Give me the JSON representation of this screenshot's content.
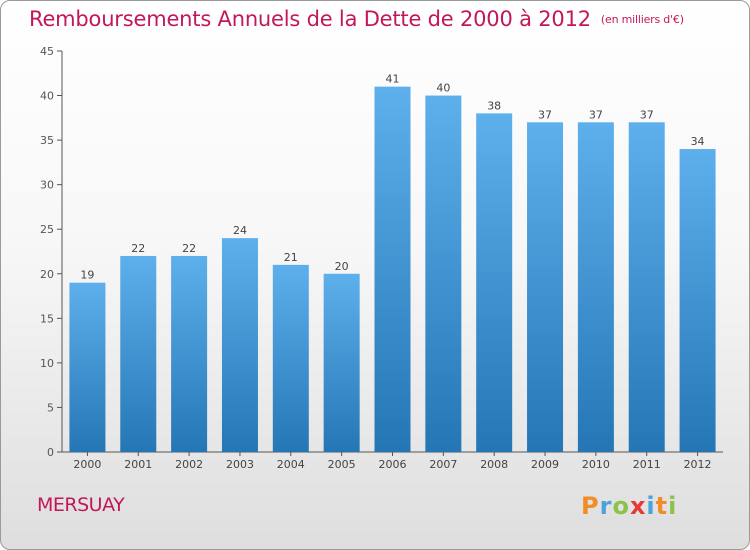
{
  "header": {
    "title": "Remboursements Annuels de la Dette de 2000 à 2012",
    "subtitle": "(en milliers d'€)"
  },
  "commune": "MERSUAY",
  "logo": {
    "text": "Proxiti",
    "letters": [
      "P",
      "r",
      "o",
      "x",
      "i",
      "t",
      "i"
    ]
  },
  "colors": {
    "title": "#c2185b",
    "bar_top": "#5eb0ec",
    "bar_bottom": "#2576b5",
    "axis": "#555555"
  },
  "chart_data": {
    "type": "bar",
    "categories": [
      "2000",
      "2001",
      "2002",
      "2003",
      "2004",
      "2005",
      "2006",
      "2007",
      "2008",
      "2009",
      "2010",
      "2011",
      "2012"
    ],
    "values": [
      19,
      22,
      22,
      24,
      21,
      20,
      41,
      40,
      38,
      37,
      37,
      37,
      34
    ],
    "data_labels": [
      "19",
      "22",
      "22",
      "24",
      "21",
      "20",
      "41",
      "40",
      "38",
      "37",
      "37",
      "37",
      "34"
    ],
    "y_ticks": [
      "0",
      "5",
      "10",
      "15",
      "20",
      "25",
      "30",
      "35",
      "40",
      "45"
    ],
    "ylim": [
      0,
      45
    ],
    "grid": false,
    "legend": "none"
  }
}
